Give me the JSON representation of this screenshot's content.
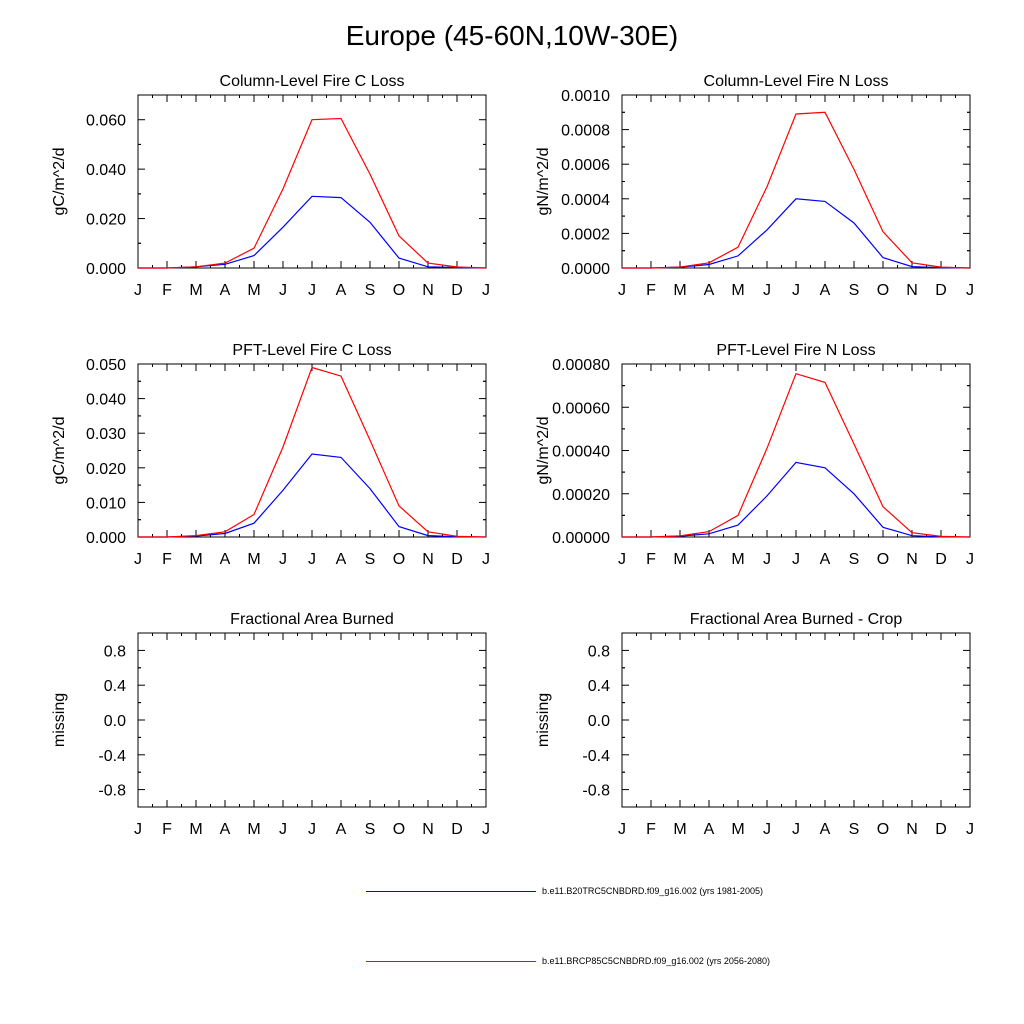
{
  "figure": {
    "title": "Europe (45-60N,10W-30E)"
  },
  "colors": {
    "series_1": "#0000ff",
    "series_2": "#ff0000",
    "axis": "#000000"
  },
  "chart_data": [
    {
      "type": "line",
      "title": "Column-Level Fire C Loss",
      "xlabel": "",
      "ylabel": "gC/m^2/d",
      "categories": [
        "J",
        "F",
        "M",
        "A",
        "M",
        "J",
        "J",
        "A",
        "S",
        "O",
        "N",
        "D",
        "J"
      ],
      "ylim": [
        0,
        0.07
      ],
      "yticks": [
        0,
        0.02,
        0.04,
        0.06
      ],
      "ytick_labels": [
        "0.000",
        "0.020",
        "0.040",
        "0.060"
      ],
      "series": [
        {
          "name": "b.e11.B20TRC5CNBDRD.f09_g16.002 (yrs 1981-2005)",
          "values": [
            0.0,
            0.0,
            0.0005,
            0.0015,
            0.005,
            0.0165,
            0.029,
            0.0285,
            0.0185,
            0.004,
            0.0005,
            0.0002,
            0.0
          ]
        },
        {
          "name": "b.e11.BRCP85C5CNBDRD.f09_g16.002 (yrs 2056-2080)",
          "values": [
            0.0,
            0.0,
            0.0005,
            0.002,
            0.008,
            0.032,
            0.06,
            0.0605,
            0.038,
            0.013,
            0.002,
            0.0004,
            0.0
          ]
        }
      ]
    },
    {
      "type": "line",
      "title": "Column-Level Fire N Loss",
      "xlabel": "",
      "ylabel": "gN/m^2/d",
      "categories": [
        "J",
        "F",
        "M",
        "A",
        "M",
        "J",
        "J",
        "A",
        "S",
        "O",
        "N",
        "D",
        "J"
      ],
      "ylim": [
        0,
        0.001
      ],
      "yticks": [
        0,
        0.0002,
        0.0004,
        0.0006,
        0.0008,
        0.001
      ],
      "ytick_labels": [
        "0.0000",
        "0.0002",
        "0.0004",
        "0.0006",
        "0.0008",
        "0.0010"
      ],
      "series": [
        {
          "name": "b.e11.B20TRC5CNBDRD.f09_g16.002 (yrs 1981-2005)",
          "values": [
            0.0,
            0.0,
            5e-06,
            2e-05,
            7e-05,
            0.00022,
            0.0004,
            0.000385,
            0.00026,
            6e-05,
            8e-06,
            2e-06,
            0.0
          ]
        },
        {
          "name": "b.e11.BRCP85C5CNBDRD.f09_g16.002 (yrs 2056-2080)",
          "values": [
            0.0,
            0.0,
            5e-06,
            3e-05,
            0.00012,
            0.00047,
            0.00089,
            0.0009,
            0.00057,
            0.00021,
            3e-05,
            5e-06,
            0.0
          ]
        }
      ]
    },
    {
      "type": "line",
      "title": "PFT-Level Fire C Loss",
      "xlabel": "",
      "ylabel": "gC/m^2/d",
      "categories": [
        "J",
        "F",
        "M",
        "A",
        "M",
        "J",
        "J",
        "A",
        "S",
        "O",
        "N",
        "D",
        "J"
      ],
      "ylim": [
        0,
        0.05
      ],
      "yticks": [
        0,
        0.01,
        0.02,
        0.03,
        0.04,
        0.05
      ],
      "ytick_labels": [
        "0.000",
        "0.010",
        "0.020",
        "0.030",
        "0.040",
        "0.050"
      ],
      "series": [
        {
          "name": "b.e11.B20TRC5CNBDRD.f09_g16.002 (yrs 1981-2005)",
          "values": [
            0.0,
            0.0,
            0.0003,
            0.001,
            0.004,
            0.0135,
            0.024,
            0.023,
            0.014,
            0.003,
            0.0004,
            0.0001,
            0.0
          ]
        },
        {
          "name": "b.e11.BRCP85C5CNBDRD.f09_g16.002 (yrs 2056-2080)",
          "values": [
            0.0,
            0.0,
            0.0004,
            0.0015,
            0.0065,
            0.026,
            0.049,
            0.0465,
            0.028,
            0.009,
            0.0015,
            0.0002,
            0.0
          ]
        }
      ]
    },
    {
      "type": "line",
      "title": "PFT-Level Fire N Loss",
      "xlabel": "",
      "ylabel": "gN/m^2/d",
      "categories": [
        "J",
        "F",
        "M",
        "A",
        "M",
        "J",
        "J",
        "A",
        "S",
        "O",
        "N",
        "D",
        "J"
      ],
      "ylim": [
        0,
        0.0008
      ],
      "yticks": [
        0,
        0.0002,
        0.0004,
        0.0006,
        0.0008
      ],
      "ytick_labels": [
        "0.00000",
        "0.00020",
        "0.00040",
        "0.00060",
        "0.00080"
      ],
      "series": [
        {
          "name": "b.e11.B20TRC5CNBDRD.f09_g16.002 (yrs 1981-2005)",
          "values": [
            0.0,
            0.0,
            4e-06,
            1.5e-05,
            5.5e-05,
            0.00019,
            0.000345,
            0.00032,
            0.0002,
            4.5e-05,
            6e-06,
            1e-06,
            0.0
          ]
        },
        {
          "name": "b.e11.BRCP85C5CNBDRD.f09_g16.002 (yrs 2056-2080)",
          "values": [
            0.0,
            0.0,
            5e-06,
            2.5e-05,
            0.0001,
            0.00041,
            0.000755,
            0.000715,
            0.00043,
            0.00014,
            2e-05,
            3e-06,
            0.0
          ]
        }
      ]
    },
    {
      "type": "line",
      "title": "Fractional Area Burned",
      "xlabel": "",
      "ylabel": "missing",
      "categories": [
        "J",
        "F",
        "M",
        "A",
        "M",
        "J",
        "J",
        "A",
        "S",
        "O",
        "N",
        "D",
        "J"
      ],
      "ylim": [
        -1,
        1
      ],
      "yticks": [
        -0.8,
        -0.4,
        0.0,
        0.4,
        0.8
      ],
      "ytick_labels": [
        "-0.8",
        "-0.4",
        "0.0",
        "0.4",
        "0.8"
      ],
      "series": []
    },
    {
      "type": "line",
      "title": "Fractional Area Burned - Crop",
      "xlabel": "",
      "ylabel": "missing",
      "categories": [
        "J",
        "F",
        "M",
        "A",
        "M",
        "J",
        "J",
        "A",
        "S",
        "O",
        "N",
        "D",
        "J"
      ],
      "ylim": [
        -1,
        1
      ],
      "yticks": [
        -0.8,
        -0.4,
        0.0,
        0.4,
        0.8
      ],
      "ytick_labels": [
        "-0.8",
        "-0.4",
        "0.0",
        "0.4",
        "0.8"
      ],
      "series": []
    }
  ],
  "legend": [
    {
      "label": "b.e11.B20TRC5CNBDRD.f09_g16.002 (yrs 1981-2005)",
      "color": "#0000ff"
    },
    {
      "label": "b.e11.BRCP85C5CNBDRD.f09_g16.002 (yrs 2056-2080)",
      "color": "#ff0000"
    }
  ]
}
